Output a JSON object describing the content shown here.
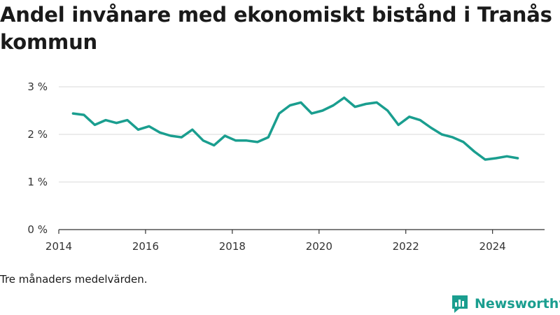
{
  "title": "Andel invånare med ekonomiskt bistånd i Tranås kommun",
  "footnote": "Tre månaders medelvärden.",
  "brand": {
    "name": "Newsworthy",
    "icon": "bar-chart-speech-bubble-icon",
    "color": "#1a9e8f"
  },
  "colors": {
    "line": "#1a9e8f",
    "grid": "#d9d9d9",
    "axis": "#333333"
  },
  "chart_data": {
    "type": "line",
    "title": "Andel invånare med ekonomiskt bistånd i Tranås kommun",
    "xlabel": "",
    "ylabel": "",
    "xlim": [
      2014,
      2025.2
    ],
    "ylim": [
      0,
      3
    ],
    "x_ticks": [
      2014,
      2016,
      2018,
      2020,
      2022,
      2024
    ],
    "x_tick_labels": [
      "2014",
      "2016",
      "2018",
      "2020",
      "2022",
      "2024"
    ],
    "y_ticks": [
      0,
      1,
      2,
      3
    ],
    "y_tick_labels": [
      "0 %",
      "1 %",
      "2 %",
      "3 %"
    ],
    "grid": true,
    "series": [
      {
        "x": [
          2014.33,
          2014.58,
          2014.83,
          2015.08,
          2015.33,
          2015.58,
          2015.83,
          2016.08,
          2016.33,
          2016.58,
          2016.83,
          2017.08,
          2017.33,
          2017.58,
          2017.83,
          2018.08,
          2018.33,
          2018.58,
          2018.83,
          2019.08,
          2019.33,
          2019.58,
          2019.83,
          2020.08,
          2020.33,
          2020.58,
          2020.83,
          2021.08,
          2021.33,
          2021.58,
          2021.83,
          2022.08,
          2022.33,
          2022.58,
          2022.83,
          2023.08,
          2023.33,
          2023.58,
          2023.83,
          2024.08,
          2024.33,
          2024.58
        ],
        "values": [
          2.44,
          2.41,
          2.2,
          2.3,
          2.24,
          2.3,
          2.1,
          2.17,
          2.04,
          1.97,
          1.94,
          2.1,
          1.87,
          1.77,
          1.97,
          1.87,
          1.87,
          1.84,
          1.94,
          2.44,
          2.61,
          2.67,
          2.44,
          2.5,
          2.61,
          2.77,
          2.58,
          2.64,
          2.67,
          2.5,
          2.2,
          2.37,
          2.3,
          2.14,
          2.0,
          1.94,
          1.84,
          1.64,
          1.47,
          1.5,
          1.54,
          1.5
        ]
      }
    ]
  }
}
